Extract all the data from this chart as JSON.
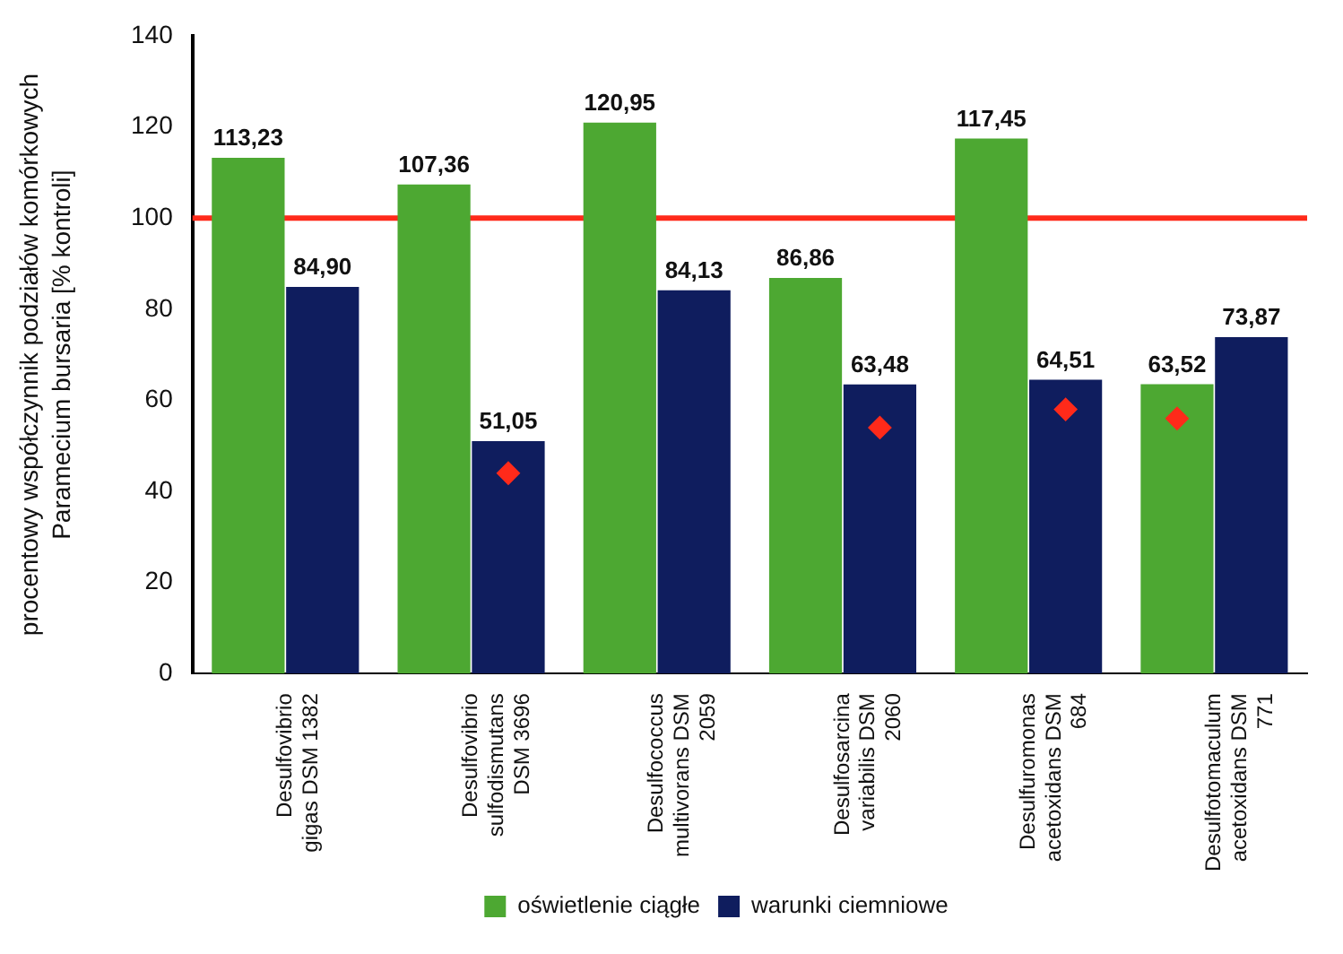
{
  "chart_data": {
    "type": "bar",
    "ylabel": "procentowy współczynnik podziałów komórkowych Paramecium bursaria [% kontroli]",
    "categories": [
      "Desulfovibrio gigas DSM 1382",
      "Desulfovibrio sulfodismutans DSM 3696",
      "Desulfococcus multivorans DSM 2059",
      "Desulfosarcina variabilis DSM 2060",
      "Desulfuromonas acetoxidans DSM 684",
      "Desulfotomaculum acetoxidans DSM 771"
    ],
    "series": [
      {
        "name": "oświetlenie ciągłe",
        "color": "#4da832",
        "values": [
          113.23,
          107.36,
          120.95,
          86.86,
          117.45,
          63.52
        ],
        "value_labels": [
          "113,23",
          "107,36",
          "120,95",
          "86,86",
          "117,45",
          "63,52"
        ]
      },
      {
        "name": "warunki ciemniowe",
        "color": "#0f1d5e",
        "values": [
          84.9,
          51.05,
          84.13,
          63.48,
          64.51,
          73.87
        ],
        "value_labels": [
          "84,90",
          "51,05",
          "84,13",
          "63,48",
          "64,51",
          "73,87"
        ]
      },
      {
        "type": "scatter",
        "color": "#ff2a1a",
        "values": [
          null,
          null,
          null,
          null,
          null,
          56
        ]
      },
      {
        "type": "scatter",
        "color": "#ff2a1a",
        "values": [
          null,
          44,
          null,
          54,
          58,
          null
        ]
      }
    ],
    "ylim": [
      0,
      140
    ],
    "yticks": [
      0,
      20,
      40,
      60,
      80,
      100,
      120,
      140
    ],
    "grid": false,
    "legend": "bottom",
    "marker": "diamond",
    "ref_lines": [
      {
        "axis": "y",
        "value": 100,
        "color": "#ff2a1a"
      }
    ]
  }
}
